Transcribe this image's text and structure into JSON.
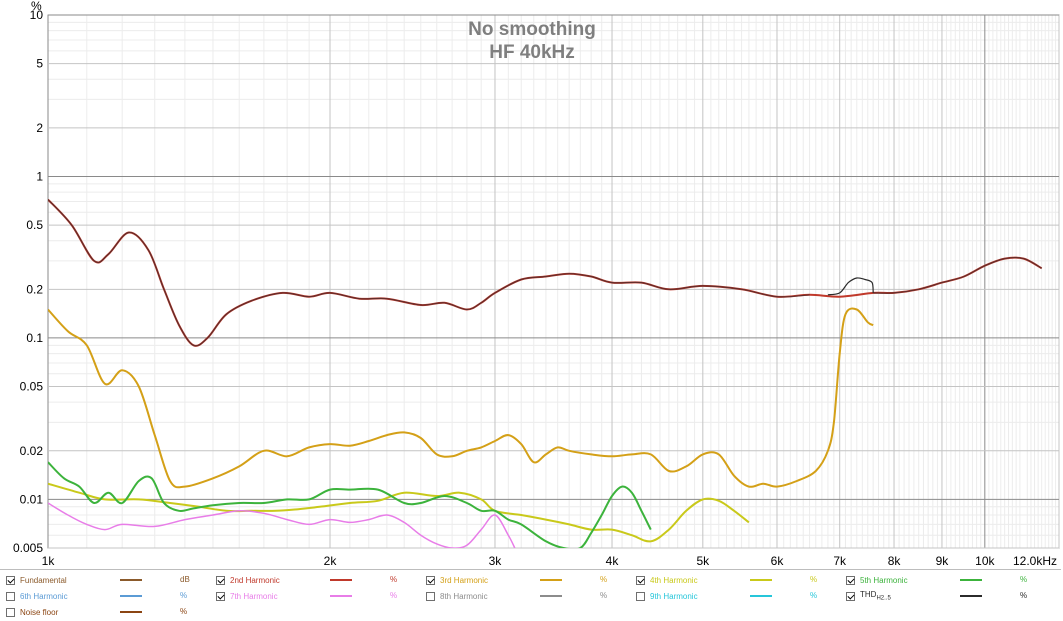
{
  "chart_data": {
    "type": "line",
    "title": "No smoothing",
    "subtitle": "HF 40kHz",
    "ylabel": "%",
    "xscale": "log",
    "yscale": "log",
    "xlim": [
      1000,
      12000
    ],
    "ylim": [
      0.005,
      10
    ],
    "grid": true,
    "legend_position": "bottom",
    "x_ticks": [
      {
        "value": 1000,
        "label": "1k"
      },
      {
        "value": 2000,
        "label": "2k"
      },
      {
        "value": 3000,
        "label": "3k"
      },
      {
        "value": 4000,
        "label": "4k"
      },
      {
        "value": 5000,
        "label": "5k"
      },
      {
        "value": 6000,
        "label": "6k"
      },
      {
        "value": 7000,
        "label": "7k"
      },
      {
        "value": 8000,
        "label": "8k"
      },
      {
        "value": 9000,
        "label": "9k"
      },
      {
        "value": 10000,
        "label": "10k"
      },
      {
        "value": 12000,
        "label": "12.0kHz"
      }
    ],
    "y_ticks": [
      {
        "value": 10,
        "label": "10"
      },
      {
        "value": 5,
        "label": "5"
      },
      {
        "value": 2,
        "label": "2"
      },
      {
        "value": 1,
        "label": "1"
      },
      {
        "value": 0.5,
        "label": "0.5"
      },
      {
        "value": 0.2,
        "label": "0.2"
      },
      {
        "value": 0.1,
        "label": "0.1"
      },
      {
        "value": 0.05,
        "label": "0.05"
      },
      {
        "value": 0.02,
        "label": "0.02"
      },
      {
        "value": 0.01,
        "label": "0.01"
      },
      {
        "value": 0.005,
        "label": "0.005"
      }
    ],
    "series": [
      {
        "name": "2nd Harmonic",
        "color": "#c0392b",
        "width": 2,
        "points": [
          [
            1000,
            0.72
          ],
          [
            1060,
            0.5
          ],
          [
            1120,
            0.3
          ],
          [
            1160,
            0.33
          ],
          [
            1220,
            0.45
          ],
          [
            1280,
            0.35
          ],
          [
            1330,
            0.2
          ],
          [
            1380,
            0.12
          ],
          [
            1430,
            0.09
          ],
          [
            1480,
            0.1
          ],
          [
            1550,
            0.14
          ],
          [
            1650,
            0.17
          ],
          [
            1780,
            0.19
          ],
          [
            1900,
            0.18
          ],
          [
            2000,
            0.19
          ],
          [
            2150,
            0.175
          ],
          [
            2300,
            0.175
          ],
          [
            2500,
            0.16
          ],
          [
            2650,
            0.165
          ],
          [
            2800,
            0.15
          ],
          [
            2900,
            0.165
          ],
          [
            3000,
            0.19
          ],
          [
            3200,
            0.23
          ],
          [
            3400,
            0.24
          ],
          [
            3600,
            0.25
          ],
          [
            3800,
            0.24
          ],
          [
            4000,
            0.22
          ],
          [
            4300,
            0.22
          ],
          [
            4600,
            0.2
          ],
          [
            5000,
            0.21
          ],
          [
            5500,
            0.2
          ],
          [
            6000,
            0.18
          ],
          [
            6500,
            0.185
          ],
          [
            7000,
            0.18
          ],
          [
            7600,
            0.19
          ],
          [
            8000,
            0.19
          ],
          [
            8500,
            0.2
          ],
          [
            9000,
            0.22
          ],
          [
            9500,
            0.24
          ],
          [
            10000,
            0.28
          ],
          [
            10500,
            0.31
          ],
          [
            11000,
            0.31
          ],
          [
            11500,
            0.27
          ]
        ]
      },
      {
        "name": "THD H2..5",
        "color": "#2b2b2b",
        "width": 1.2,
        "points": [
          [
            6800,
            0.185
          ],
          [
            7000,
            0.19
          ],
          [
            7150,
            0.22
          ],
          [
            7300,
            0.235
          ],
          [
            7450,
            0.23
          ],
          [
            7580,
            0.22
          ],
          [
            7600,
            0.19
          ]
        ]
      },
      {
        "name": "3rd Harmonic",
        "color": "#d4a017",
        "width": 2,
        "points": [
          [
            1000,
            0.15
          ],
          [
            1050,
            0.11
          ],
          [
            1100,
            0.09
          ],
          [
            1150,
            0.052
          ],
          [
            1200,
            0.063
          ],
          [
            1250,
            0.05
          ],
          [
            1300,
            0.025
          ],
          [
            1350,
            0.013
          ],
          [
            1400,
            0.012
          ],
          [
            1500,
            0.0135
          ],
          [
            1600,
            0.016
          ],
          [
            1700,
            0.02
          ],
          [
            1800,
            0.0185
          ],
          [
            1900,
            0.021
          ],
          [
            2000,
            0.022
          ],
          [
            2100,
            0.0215
          ],
          [
            2200,
            0.023
          ],
          [
            2300,
            0.025
          ],
          [
            2400,
            0.026
          ],
          [
            2500,
            0.024
          ],
          [
            2600,
            0.019
          ],
          [
            2700,
            0.0185
          ],
          [
            2800,
            0.02
          ],
          [
            2900,
            0.021
          ],
          [
            3000,
            0.023
          ],
          [
            3100,
            0.025
          ],
          [
            3200,
            0.022
          ],
          [
            3300,
            0.017
          ],
          [
            3400,
            0.019
          ],
          [
            3500,
            0.021
          ],
          [
            3600,
            0.02
          ],
          [
            3800,
            0.019
          ],
          [
            4000,
            0.0185
          ],
          [
            4200,
            0.019
          ],
          [
            4400,
            0.019
          ],
          [
            4600,
            0.015
          ],
          [
            4800,
            0.016
          ],
          [
            5000,
            0.019
          ],
          [
            5200,
            0.019
          ],
          [
            5400,
            0.014
          ],
          [
            5600,
            0.012
          ],
          [
            5800,
            0.0125
          ],
          [
            6000,
            0.012
          ],
          [
            6300,
            0.013
          ],
          [
            6600,
            0.015
          ],
          [
            6800,
            0.02
          ],
          [
            6900,
            0.03
          ],
          [
            7000,
            0.08
          ],
          [
            7100,
            0.14
          ],
          [
            7300,
            0.15
          ],
          [
            7500,
            0.125
          ],
          [
            7600,
            0.12
          ]
        ]
      },
      {
        "name": "4th Harmonic",
        "color": "#c9c91a",
        "width": 2,
        "points": [
          [
            1000,
            0.0125
          ],
          [
            1080,
            0.011
          ],
          [
            1150,
            0.01
          ],
          [
            1250,
            0.01
          ],
          [
            1350,
            0.0095
          ],
          [
            1450,
            0.009
          ],
          [
            1550,
            0.0085
          ],
          [
            1650,
            0.0085
          ],
          [
            1750,
            0.0085
          ],
          [
            1850,
            0.0087
          ],
          [
            1950,
            0.009
          ],
          [
            2100,
            0.0095
          ],
          [
            2250,
            0.0098
          ],
          [
            2400,
            0.011
          ],
          [
            2600,
            0.0105
          ],
          [
            2750,
            0.011
          ],
          [
            2900,
            0.01
          ],
          [
            3000,
            0.0085
          ],
          [
            3200,
            0.008
          ],
          [
            3400,
            0.0075
          ],
          [
            3600,
            0.007
          ],
          [
            3800,
            0.0065
          ],
          [
            4000,
            0.0065
          ],
          [
            4200,
            0.006
          ],
          [
            4400,
            0.0055
          ],
          [
            4600,
            0.0065
          ],
          [
            4800,
            0.0085
          ],
          [
            5000,
            0.01
          ],
          [
            5200,
            0.0098
          ],
          [
            5400,
            0.0085
          ],
          [
            5600,
            0.0072
          ]
        ]
      },
      {
        "name": "5th Harmonic",
        "color": "#3cb33c",
        "width": 2,
        "points": [
          [
            1000,
            0.017
          ],
          [
            1040,
            0.0135
          ],
          [
            1080,
            0.012
          ],
          [
            1120,
            0.0095
          ],
          [
            1160,
            0.011
          ],
          [
            1200,
            0.0095
          ],
          [
            1250,
            0.013
          ],
          [
            1290,
            0.0135
          ],
          [
            1330,
            0.0095
          ],
          [
            1380,
            0.0085
          ],
          [
            1430,
            0.0088
          ],
          [
            1500,
            0.0092
          ],
          [
            1600,
            0.0095
          ],
          [
            1700,
            0.0095
          ],
          [
            1800,
            0.01
          ],
          [
            1900,
            0.01
          ],
          [
            2000,
            0.0115
          ],
          [
            2100,
            0.0115
          ],
          [
            2250,
            0.0115
          ],
          [
            2400,
            0.0095
          ],
          [
            2500,
            0.0095
          ],
          [
            2650,
            0.0105
          ],
          [
            2800,
            0.0095
          ],
          [
            2900,
            0.0085
          ],
          [
            3000,
            0.0085
          ],
          [
            3100,
            0.0075
          ],
          [
            3200,
            0.007
          ],
          [
            3400,
            0.0055
          ],
          [
            3550,
            0.005
          ],
          [
            3700,
            0.005
          ],
          [
            3800,
            0.0062
          ],
          [
            3900,
            0.008
          ],
          [
            4000,
            0.0105
          ],
          [
            4100,
            0.012
          ],
          [
            4200,
            0.011
          ],
          [
            4300,
            0.0085
          ],
          [
            4400,
            0.0065
          ]
        ]
      },
      {
        "name": "7th Harmonic",
        "color": "#e87de8",
        "width": 1.5,
        "points": [
          [
            1000,
            0.0095
          ],
          [
            1050,
            0.008
          ],
          [
            1100,
            0.007
          ],
          [
            1150,
            0.0065
          ],
          [
            1200,
            0.007
          ],
          [
            1300,
            0.0068
          ],
          [
            1400,
            0.0075
          ],
          [
            1500,
            0.008
          ],
          [
            1600,
            0.0085
          ],
          [
            1700,
            0.0082
          ],
          [
            1800,
            0.0075
          ],
          [
            1900,
            0.007
          ],
          [
            2000,
            0.0075
          ],
          [
            2100,
            0.0072
          ],
          [
            2200,
            0.0075
          ],
          [
            2300,
            0.008
          ],
          [
            2400,
            0.0072
          ],
          [
            2500,
            0.006
          ],
          [
            2600,
            0.0053
          ],
          [
            2700,
            0.005
          ],
          [
            2800,
            0.0052
          ],
          [
            2900,
            0.0065
          ],
          [
            3000,
            0.008
          ],
          [
            3100,
            0.006
          ],
          [
            3150,
            0.005
          ]
        ]
      }
    ],
    "legend": [
      {
        "label": "Fundamental",
        "checked": true,
        "color": "#8b5a2b",
        "unit": "dB"
      },
      {
        "label": "2nd Harmonic",
        "checked": true,
        "color": "#c0392b",
        "unit": "%"
      },
      {
        "label": "3rd Harmonic",
        "checked": true,
        "color": "#d4a017",
        "unit": "%"
      },
      {
        "label": "4th Harmonic",
        "checked": true,
        "color": "#c9c91a",
        "unit": "%"
      },
      {
        "label": "5th Harmonic",
        "checked": true,
        "color": "#3cb33c",
        "unit": "%"
      },
      {
        "label": "6th Harmonic",
        "checked": false,
        "color": "#5b9bd5",
        "unit": "%"
      },
      {
        "label": "7th Harmonic",
        "checked": true,
        "color": "#e87de8",
        "unit": "%"
      },
      {
        "label": "8th Harmonic",
        "checked": false,
        "color": "#8c8c8c",
        "unit": "%"
      },
      {
        "label": "9th Harmonic",
        "checked": false,
        "color": "#26c6da",
        "unit": "%"
      },
      {
        "label": "THD",
        "sub": "H2..5",
        "checked": true,
        "color": "#2b2b2b",
        "unit": "%"
      },
      {
        "label": "Noise floor",
        "checked": false,
        "color": "#8b4513",
        "unit": "%"
      }
    ]
  }
}
